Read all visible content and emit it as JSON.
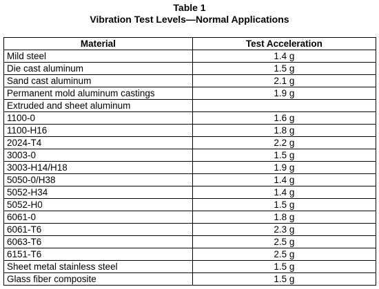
{
  "caption": {
    "table_number": "Table 1",
    "title": "Vibration Test Levels—Normal Applications"
  },
  "table": {
    "headers": [
      "Material",
      "Test Acceleration"
    ],
    "rows": [
      [
        "Mild steel",
        "1.4 g"
      ],
      [
        "Die cast aluminum",
        "1.5 g"
      ],
      [
        "Sand cast aluminum",
        "2.1 g"
      ],
      [
        "Permanent mold aluminum castings",
        "1.9 g"
      ],
      [
        "Extruded and sheet aluminum",
        ""
      ],
      [
        "1100-0",
        "1.6 g"
      ],
      [
        "1100-H16",
        "1.8 g"
      ],
      [
        "2024-T4",
        "2.2 g"
      ],
      [
        "3003-0",
        "1.5 g"
      ],
      [
        "3003-H14/H18",
        "1.9 g"
      ],
      [
        "5050-0/H38",
        "1.4 g"
      ],
      [
        "5052-H34",
        "1.4 g"
      ],
      [
        "5052-H0",
        "1.5 g"
      ],
      [
        "6061-0",
        "1.8 g"
      ],
      [
        "6061-T6",
        "2.3 g"
      ],
      [
        "6063-T6",
        "2.5 g"
      ],
      [
        "6151-T6",
        "2.5 g"
      ],
      [
        "Sheet metal stainless steel",
        "1.5 g"
      ],
      [
        "Glass fiber composite",
        "1.5 g"
      ]
    ]
  }
}
